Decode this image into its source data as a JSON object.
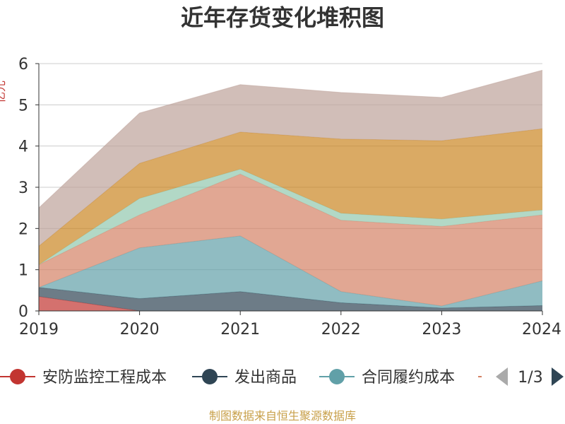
{
  "chart_data": {
    "type": "area",
    "title": "近年存货变化堆积图",
    "xlabel": "",
    "ylabel": "亿元",
    "categories": [
      "2019",
      "2020",
      "2021",
      "2022",
      "2023",
      "2024"
    ],
    "ylim": [
      0,
      6
    ],
    "yticks": [
      0,
      1,
      2,
      3,
      4,
      5,
      6
    ],
    "stacked": true,
    "series": [
      {
        "name": "安防监控工程成本",
        "color": "#c23531",
        "values": [
          0.35,
          0.0,
          0.0,
          0.0,
          0.0,
          0.0
        ]
      },
      {
        "name": "发出商品",
        "color": "#2f4554",
        "values": [
          0.22,
          0.3,
          0.47,
          0.2,
          0.07,
          0.13
        ]
      },
      {
        "name": "合同履约成本",
        "color": "#61a0a8",
        "values": [
          0.0,
          1.23,
          1.35,
          0.27,
          0.05,
          0.6
        ]
      },
      {
        "name": "",
        "color": "#d48265",
        "values": [
          0.55,
          0.8,
          1.5,
          1.73,
          1.93,
          1.6
        ]
      },
      {
        "name": "",
        "color": "#91c7ae",
        "values": [
          0.0,
          0.4,
          0.12,
          0.17,
          0.18,
          0.12
        ]
      },
      {
        "name": "",
        "color": "#ca8622",
        "values": [
          0.45,
          0.85,
          0.9,
          1.8,
          1.9,
          1.97
        ]
      },
      {
        "name": "",
        "color": "#bda29a",
        "values": [
          0.93,
          1.22,
          1.15,
          1.13,
          1.05,
          1.42
        ]
      }
    ],
    "legend": {
      "position": "bottom",
      "page": "1/3",
      "visible_items": [
        "安防监控工程成本",
        "发出商品",
        "合同履约成本"
      ]
    },
    "source": "制图数据来自恒生聚源数据库"
  }
}
